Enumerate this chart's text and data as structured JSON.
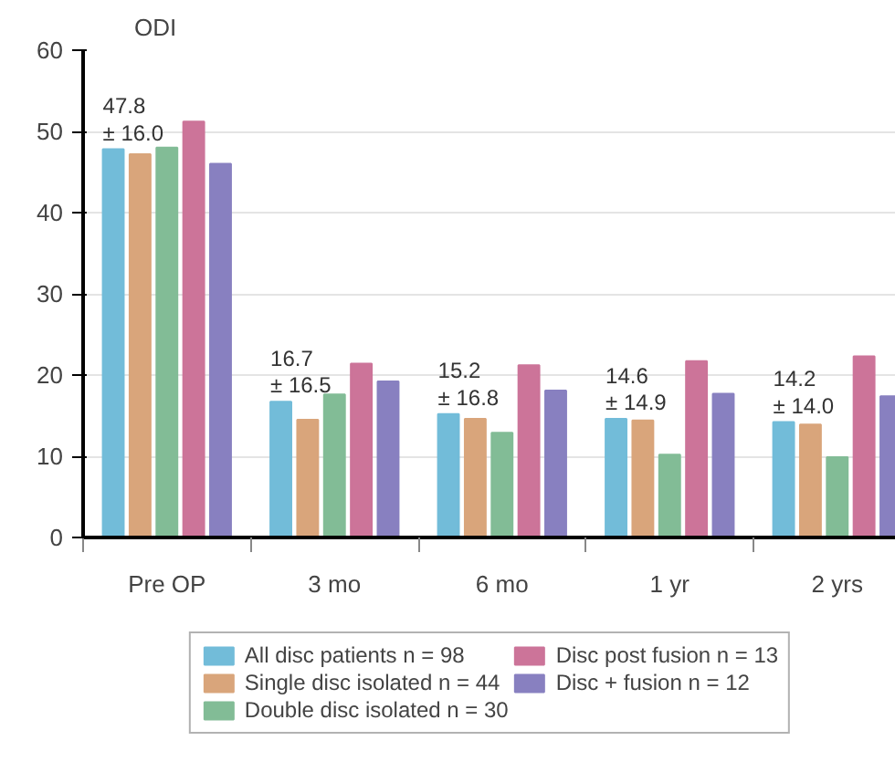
{
  "chart_data": {
    "type": "bar",
    "ylabel": "ODI",
    "categories": [
      "Pre OP",
      "3 mo",
      "6 mo",
      "1 yr",
      "2 yrs"
    ],
    "series": [
      {
        "name": "All disc patients n = 98",
        "color": "#72bcd9",
        "values": [
          47.8,
          16.7,
          15.2,
          14.6,
          14.2
        ]
      },
      {
        "name": "Single disc isolated n = 44",
        "color": "#d9a57b",
        "values": [
          47.2,
          14.5,
          14.6,
          14.4,
          13.9
        ]
      },
      {
        "name": "Double disc isolated n = 30",
        "color": "#82bc96",
        "values": [
          48.0,
          17.6,
          12.9,
          10.2,
          9.9
        ]
      },
      {
        "name": "Disc post fusion n = 13",
        "color": "#cc7499",
        "values": [
          51.2,
          21.4,
          21.2,
          21.7,
          22.3
        ]
      },
      {
        "name": "Disc + fusion n = 12",
        "color": "#8880c0",
        "values": [
          46.0,
          19.2,
          18.1,
          17.7,
          17.4
        ]
      }
    ],
    "ylim": [
      0,
      60
    ],
    "yticks": [
      0,
      10,
      20,
      30,
      40,
      50,
      60
    ],
    "grid": "y",
    "legend": "bottom",
    "annotations": [
      "47.8\n± 16.0",
      "16.7\n± 16.5",
      "15.2\n± 16.8",
      "14.6\n± 14.9",
      "14.2\n± 14.0"
    ]
  }
}
